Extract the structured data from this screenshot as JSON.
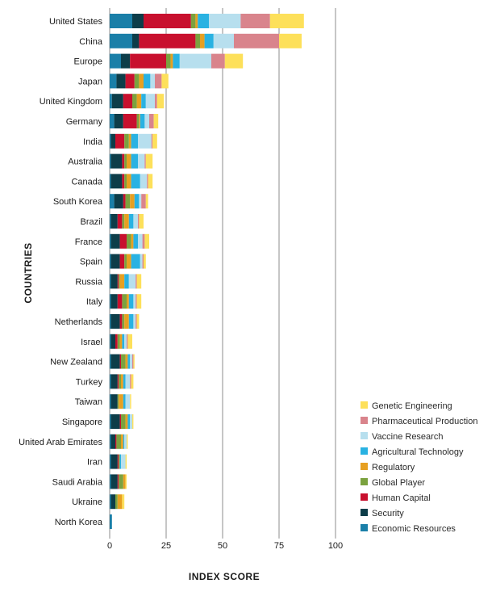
{
  "chart_data": {
    "type": "bar",
    "orientation": "horizontal",
    "stacked": true,
    "xlabel": "INDEX SCORE",
    "ylabel": "COUNTRIES",
    "xlim": [
      0,
      100
    ],
    "xticks": [
      "0",
      "25",
      "50",
      "75",
      "100"
    ],
    "grid": "vertical",
    "legend_position": "bottom-right",
    "categories": [
      "United States",
      "China",
      "Europe",
      "Japan",
      "United Kingdom",
      "Germany",
      "India",
      "Australia",
      "Canada",
      "South Korea",
      "Brazil",
      "France",
      "Spain",
      "Russia",
      "Italy",
      "Netherlands",
      "Israel",
      "New Zealand",
      "Turkey",
      "Taiwan",
      "Singapore",
      "United Arab Emirates",
      "Iran",
      "Saudi Arabia",
      "Ukraine",
      "North Korea"
    ],
    "series": [
      {
        "name": "Economic Resources",
        "color": "#1a7fa8",
        "values": [
          10,
          10,
          5,
          3,
          1,
          2,
          0.5,
          0.5,
          0.5,
          2,
          0.5,
          0.5,
          0.5,
          0.5,
          0.5,
          0.5,
          0.5,
          0.5,
          0.5,
          0.5,
          0.5,
          0.5,
          0.5,
          0.5,
          0.5,
          1
        ]
      },
      {
        "name": "Security",
        "color": "#0d3d49",
        "values": [
          5,
          3,
          4,
          4,
          5,
          4,
          2,
          5,
          5,
          4,
          3,
          4,
          4,
          3,
          3,
          4,
          2,
          4,
          3,
          3,
          4,
          2,
          3,
          3,
          2,
          0
        ]
      },
      {
        "name": "Human Capital",
        "color": "#c8102e",
        "values": [
          21,
          25,
          16,
          4,
          4,
          6,
          4,
          1,
          1,
          1,
          2,
          3,
          2,
          0.5,
          2,
          1,
          1,
          0.5,
          0.5,
          0,
          0.5,
          0.5,
          0.5,
          0.5,
          0,
          0
        ]
      },
      {
        "name": "Global Player",
        "color": "#7ba23f",
        "values": [
          2,
          2,
          2,
          2,
          2,
          1,
          2,
          1,
          1,
          2,
          1,
          2,
          1,
          0.5,
          2,
          1,
          1,
          2,
          1,
          0.5,
          2,
          2,
          0.5,
          2,
          1,
          0
        ]
      },
      {
        "name": "Regulatory",
        "color": "#e7a021",
        "values": [
          1,
          2,
          1,
          2,
          2,
          0.5,
          1,
          2,
          2,
          2,
          2,
          1,
          2,
          2,
          1,
          2,
          1,
          1,
          1,
          2,
          1,
          1,
          0,
          1,
          2,
          0
        ]
      },
      {
        "name": "Agricultural Technology",
        "color": "#29b2e2",
        "values": [
          5,
          4,
          3,
          3,
          2,
          2,
          3,
          3,
          4,
          2,
          2,
          2,
          4,
          2,
          2,
          2,
          1,
          1,
          1,
          1,
          1,
          0.5,
          0.5,
          0,
          0,
          0
        ]
      },
      {
        "name": "Vaccine Research",
        "color": "#b7dfee",
        "values": [
          14,
          9,
          14,
          2,
          4,
          2,
          6,
          3,
          3,
          1,
          2,
          2,
          1,
          3,
          1,
          1,
          1,
          1,
          2,
          2,
          1,
          1,
          2,
          0,
          0,
          0
        ]
      },
      {
        "name": "Pharmaceutical Production",
        "color": "#d9848c",
        "values": [
          13,
          20,
          6,
          3,
          1,
          2,
          0.5,
          0.5,
          0.5,
          2,
          0.5,
          1,
          0.5,
          0.5,
          0.5,
          0.5,
          0.5,
          0.5,
          0.5,
          0,
          0,
          0,
          0,
          0,
          0,
          0
        ]
      },
      {
        "name": "Genetic Engineering",
        "color": "#fde05a",
        "values": [
          15,
          10,
          8,
          3,
          3,
          2,
          2,
          3,
          2,
          1,
          2,
          2,
          1,
          2,
          2,
          1,
          2,
          0.5,
          1,
          0.5,
          0.5,
          0.5,
          0.5,
          0.5,
          1,
          0
        ]
      }
    ]
  }
}
